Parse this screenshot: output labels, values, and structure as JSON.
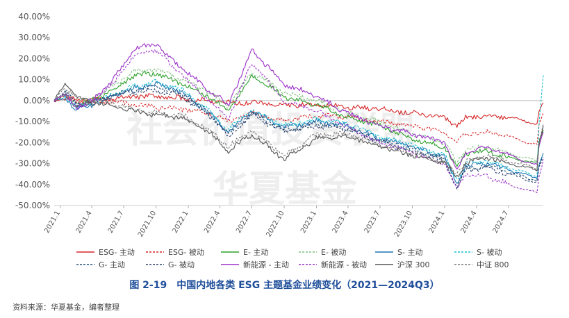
{
  "caption": "图 2-19　中国内地各类 ESG 主题基金业绩变化（2021—2024Q3）",
  "source": "资料来源：华夏基金，编者整理",
  "watermarks": [
    "社会价值投资联盟",
    "华夏基金"
  ],
  "chart_data": {
    "type": "line",
    "ylim": [
      -0.5,
      0.4
    ],
    "yticks": [
      -0.5,
      -0.4,
      -0.3,
      -0.2,
      -0.1,
      0.0,
      0.1,
      0.2,
      0.3,
      0.4
    ],
    "ytick_labels": [
      "-50.00%",
      "-40.00%",
      "-30.00%",
      "-20.00%",
      "-10.00%",
      "0.00%",
      "10.00%",
      "20.00%",
      "30.00%",
      "40.00%"
    ],
    "x_range": [
      "2020-12-15",
      "2024-10-08"
    ],
    "x_ticks": [
      {
        "label": "2021.1",
        "date": "2021-01-01"
      },
      {
        "label": "2021.4",
        "date": "2021-04-01"
      },
      {
        "label": "2021.7",
        "date": "2021-07-01"
      },
      {
        "label": "2021.10",
        "date": "2021-10-01"
      },
      {
        "label": "2022.1",
        "date": "2022-01-01"
      },
      {
        "label": "2022.4",
        "date": "2022-04-01"
      },
      {
        "label": "2022.7",
        "date": "2022-07-01"
      },
      {
        "label": "2022.10",
        "date": "2022-10-01"
      },
      {
        "label": "2023.1",
        "date": "2023-01-01"
      },
      {
        "label": "2023.4",
        "date": "2023-04-01"
      },
      {
        "label": "2023.7",
        "date": "2023-07-01"
      },
      {
        "label": "2023.10",
        "date": "2023-10-01"
      },
      {
        "label": "2024.1",
        "date": "2024-01-01"
      },
      {
        "label": "2024.4",
        "date": "2024-04-01"
      },
      {
        "label": "2024.7",
        "date": "2024-07-01"
      }
    ],
    "legend_placement": "bottom",
    "series": [
      {
        "name": "ESG- 主动",
        "color": "#d62728",
        "dash": false,
        "x": [
          "2020-12-15",
          "2021-01-15",
          "2021-02-15",
          "2021-04-01",
          "2021-06-01",
          "2021-08-01",
          "2021-10-01",
          "2021-12-15",
          "2022-03-01",
          "2022-04-25",
          "2022-07-01",
          "2022-10-01",
          "2023-01-01",
          "2023-04-01",
          "2023-07-01",
          "2023-10-01",
          "2024-01-01",
          "2024-02-05",
          "2024-03-01",
          "2024-05-01",
          "2024-07-01",
          "2024-09-20",
          "2024-09-26",
          "2024-10-08"
        ],
        "y": [
          0.0,
          0.01,
          0.005,
          0.0,
          0.01,
          0.02,
          0.02,
          0.01,
          0.0,
          -0.01,
          -0.01,
          -0.02,
          -0.02,
          -0.03,
          -0.04,
          -0.06,
          -0.08,
          -0.12,
          -0.08,
          -0.07,
          -0.08,
          -0.11,
          -0.05,
          -0.01
        ]
      },
      {
        "name": "ESG- 被动",
        "color": "#d62728",
        "dash": true,
        "x": [
          "2020-12-15",
          "2021-01-15",
          "2021-02-15",
          "2021-04-01",
          "2021-06-01",
          "2021-08-01",
          "2021-10-01",
          "2021-12-15",
          "2022-03-01",
          "2022-04-25",
          "2022-07-01",
          "2022-10-01",
          "2023-01-01",
          "2023-04-01",
          "2023-07-01",
          "2023-10-01",
          "2024-01-01",
          "2024-02-05",
          "2024-03-01",
          "2024-05-01",
          "2024-07-01",
          "2024-09-20",
          "2024-09-26",
          "2024-10-08"
        ],
        "y": [
          0.0,
          0.02,
          0.0,
          -0.01,
          0.0,
          -0.02,
          -0.03,
          -0.04,
          -0.06,
          -0.1,
          -0.06,
          -0.1,
          -0.07,
          -0.08,
          -0.1,
          -0.12,
          -0.15,
          -0.2,
          -0.16,
          -0.15,
          -0.17,
          -0.21,
          -0.12,
          -0.06
        ]
      },
      {
        "name": "E- 主动",
        "color": "#2ca02c",
        "dash": false,
        "x": [
          "2020-12-15",
          "2021-01-15",
          "2021-02-15",
          "2021-04-01",
          "2021-06-01",
          "2021-08-01",
          "2021-10-01",
          "2021-12-15",
          "2022-03-01",
          "2022-04-25",
          "2022-07-01",
          "2022-10-01",
          "2023-01-01",
          "2023-04-01",
          "2023-07-01",
          "2023-10-01",
          "2024-01-01",
          "2024-02-05",
          "2024-03-01",
          "2024-05-01",
          "2024-07-01",
          "2024-09-20",
          "2024-09-26",
          "2024-10-08"
        ],
        "y": [
          0.0,
          0.02,
          -0.02,
          0.0,
          0.05,
          0.12,
          0.13,
          0.08,
          0.02,
          -0.05,
          0.12,
          0.02,
          -0.02,
          -0.08,
          -0.12,
          -0.18,
          -0.22,
          -0.32,
          -0.25,
          -0.24,
          -0.27,
          -0.3,
          -0.2,
          -0.14
        ]
      },
      {
        "name": "E- 被动",
        "color": "#7fbf7f",
        "dash": true,
        "x": [
          "2020-12-15",
          "2021-01-15",
          "2021-02-15",
          "2021-04-01",
          "2021-06-01",
          "2021-08-01",
          "2021-10-01",
          "2021-12-15",
          "2022-03-01",
          "2022-04-25",
          "2022-07-01",
          "2022-10-01",
          "2023-01-01",
          "2023-04-01",
          "2023-07-01",
          "2023-10-01",
          "2024-01-01",
          "2024-02-05",
          "2024-03-01",
          "2024-05-01",
          "2024-07-01",
          "2024-09-20",
          "2024-09-26",
          "2024-10-08"
        ],
        "y": [
          0.0,
          0.03,
          -0.01,
          0.01,
          0.07,
          0.14,
          0.15,
          0.1,
          0.04,
          -0.03,
          0.14,
          0.04,
          0.0,
          -0.06,
          -0.1,
          -0.16,
          -0.2,
          -0.3,
          -0.23,
          -0.22,
          -0.25,
          -0.29,
          -0.19,
          -0.12
        ]
      },
      {
        "name": "S- 主动",
        "color": "#1f77b4",
        "dash": false,
        "x": [
          "2020-12-15",
          "2021-01-15",
          "2021-02-15",
          "2021-04-01",
          "2021-06-01",
          "2021-08-01",
          "2021-10-01",
          "2021-12-15",
          "2022-03-01",
          "2022-04-25",
          "2022-07-01",
          "2022-10-01",
          "2023-01-01",
          "2023-04-01",
          "2023-07-01",
          "2023-10-01",
          "2024-01-01",
          "2024-02-05",
          "2024-03-01",
          "2024-05-01",
          "2024-07-01",
          "2024-09-20",
          "2024-09-26",
          "2024-10-08"
        ],
        "y": [
          0.0,
          0.01,
          -0.04,
          -0.02,
          0.02,
          0.06,
          0.08,
          0.04,
          -0.06,
          -0.15,
          -0.05,
          -0.13,
          -0.1,
          -0.12,
          -0.18,
          -0.22,
          -0.27,
          -0.4,
          -0.31,
          -0.3,
          -0.33,
          -0.37,
          -0.3,
          -0.25
        ]
      },
      {
        "name": "S- 被动",
        "color": "#17becf",
        "dash": true,
        "x": [
          "2020-12-15",
          "2021-01-15",
          "2021-02-15",
          "2021-04-01",
          "2021-06-01",
          "2021-08-01",
          "2021-10-01",
          "2021-12-15",
          "2022-03-01",
          "2022-04-25",
          "2022-07-01",
          "2022-10-01",
          "2023-01-01",
          "2023-04-01",
          "2023-07-01",
          "2023-10-01",
          "2024-01-01",
          "2024-02-05",
          "2024-03-01",
          "2024-05-01",
          "2024-07-01",
          "2024-09-20",
          "2024-09-26",
          "2024-10-08"
        ],
        "y": [
          0.0,
          0.02,
          -0.03,
          -0.01,
          0.03,
          0.07,
          0.09,
          0.05,
          -0.05,
          -0.14,
          -0.04,
          -0.12,
          -0.09,
          -0.11,
          -0.17,
          -0.21,
          -0.26,
          -0.38,
          -0.3,
          -0.29,
          -0.32,
          -0.36,
          -0.1,
          0.12
        ]
      },
      {
        "name": "G- 主动",
        "color": "#1f4e79",
        "dash": true,
        "x": [
          "2020-12-15",
          "2021-01-15",
          "2021-02-15",
          "2021-04-01",
          "2021-06-01",
          "2021-08-01",
          "2021-10-01",
          "2021-12-15",
          "2022-03-01",
          "2022-04-25",
          "2022-07-01",
          "2022-10-01",
          "2023-01-01",
          "2023-04-01",
          "2023-07-01",
          "2023-10-01",
          "2024-01-01",
          "2024-02-05",
          "2024-03-01",
          "2024-05-01",
          "2024-07-01",
          "2024-09-20",
          "2024-09-26",
          "2024-10-08"
        ],
        "y": [
          0.0,
          0.05,
          -0.02,
          -0.01,
          0.03,
          0.05,
          0.07,
          0.03,
          -0.06,
          -0.16,
          -0.06,
          -0.14,
          -0.11,
          -0.13,
          -0.19,
          -0.23,
          -0.28,
          -0.41,
          -0.32,
          -0.31,
          -0.34,
          -0.38,
          -0.31,
          -0.27
        ]
      },
      {
        "name": "G- 被动",
        "color": "#2b3f6b",
        "dash": true,
        "x": [
          "2020-12-15",
          "2021-01-15",
          "2021-02-15",
          "2021-04-01",
          "2021-06-01",
          "2021-08-01",
          "2021-10-01",
          "2021-12-15",
          "2022-03-01",
          "2022-04-25",
          "2022-07-01",
          "2022-10-01",
          "2023-01-01",
          "2023-04-01",
          "2023-07-01",
          "2023-10-01",
          "2024-01-01",
          "2024-02-05",
          "2024-03-01",
          "2024-05-01",
          "2024-07-01",
          "2024-09-20",
          "2024-09-26",
          "2024-10-08"
        ],
        "y": [
          0.0,
          0.04,
          -0.02,
          -0.01,
          0.02,
          0.04,
          0.05,
          0.02,
          -0.07,
          -0.17,
          -0.07,
          -0.15,
          -0.12,
          -0.14,
          -0.2,
          -0.24,
          -0.29,
          -0.42,
          -0.33,
          -0.32,
          -0.35,
          -0.39,
          -0.32,
          -0.28
        ]
      },
      {
        "name": "新能源 - 主动",
        "color": "#9b30c8",
        "dash": false,
        "x": [
          "2020-12-15",
          "2021-01-15",
          "2021-02-15",
          "2021-04-01",
          "2021-06-01",
          "2021-08-01",
          "2021-10-01",
          "2021-12-15",
          "2022-03-01",
          "2022-04-25",
          "2022-07-01",
          "2022-10-01",
          "2023-01-01",
          "2023-04-01",
          "2023-07-01",
          "2023-10-01",
          "2024-01-01",
          "2024-02-05",
          "2024-03-01",
          "2024-05-01",
          "2024-07-01",
          "2024-09-20",
          "2024-09-26",
          "2024-10-08"
        ],
        "y": [
          0.0,
          0.03,
          -0.03,
          0.0,
          0.1,
          0.25,
          0.27,
          0.15,
          0.05,
          -0.02,
          0.24,
          0.08,
          0.02,
          -0.06,
          -0.12,
          -0.16,
          -0.2,
          -0.33,
          -0.25,
          -0.22,
          -0.26,
          -0.31,
          -0.22,
          -0.15
        ]
      },
      {
        "name": "新能源 - 被动",
        "color": "#9b30c8",
        "dash": true,
        "x": [
          "2020-12-15",
          "2021-01-15",
          "2021-02-15",
          "2021-04-01",
          "2021-06-01",
          "2021-08-01",
          "2021-10-01",
          "2021-12-15",
          "2022-03-01",
          "2022-04-25",
          "2022-07-01",
          "2022-10-01",
          "2023-01-01",
          "2023-04-01",
          "2023-07-01",
          "2023-10-01",
          "2024-01-01",
          "2024-02-05",
          "2024-03-01",
          "2024-05-01",
          "2024-07-01",
          "2024-09-20",
          "2024-09-26",
          "2024-10-08"
        ],
        "y": [
          0.0,
          0.03,
          -0.04,
          -0.01,
          0.08,
          0.22,
          0.24,
          0.12,
          0.0,
          -0.08,
          0.18,
          0.0,
          -0.05,
          -0.13,
          -0.2,
          -0.25,
          -0.3,
          -0.42,
          -0.35,
          -0.36,
          -0.4,
          -0.44,
          -0.36,
          -0.28
        ]
      },
      {
        "name": "沪深 300",
        "color": "#555555",
        "dash": false,
        "x": [
          "2020-12-15",
          "2021-01-15",
          "2021-02-15",
          "2021-04-01",
          "2021-06-01",
          "2021-08-01",
          "2021-10-01",
          "2021-12-15",
          "2022-03-01",
          "2022-04-25",
          "2022-07-01",
          "2022-10-01",
          "2023-01-01",
          "2023-04-01",
          "2023-07-01",
          "2023-10-01",
          "2024-01-01",
          "2024-02-05",
          "2024-03-01",
          "2024-05-01",
          "2024-07-01",
          "2024-09-20",
          "2024-09-26",
          "2024-10-08"
        ],
        "y": [
          0.0,
          0.08,
          0.02,
          -0.01,
          -0.02,
          -0.05,
          -0.07,
          -0.08,
          -0.15,
          -0.24,
          -0.16,
          -0.28,
          -0.18,
          -0.17,
          -0.22,
          -0.26,
          -0.3,
          -0.36,
          -0.3,
          -0.27,
          -0.3,
          -0.33,
          -0.2,
          -0.12
        ]
      },
      {
        "name": "中证 800",
        "color": "#777777",
        "dash": true,
        "x": [
          "2020-12-15",
          "2021-01-15",
          "2021-02-15",
          "2021-04-01",
          "2021-06-01",
          "2021-08-01",
          "2021-10-01",
          "2021-12-15",
          "2022-03-01",
          "2022-04-25",
          "2022-07-01",
          "2022-10-01",
          "2023-01-01",
          "2023-04-01",
          "2023-07-01",
          "2023-10-01",
          "2024-01-01",
          "2024-02-05",
          "2024-03-01",
          "2024-05-01",
          "2024-07-01",
          "2024-09-20",
          "2024-09-26",
          "2024-10-08"
        ],
        "y": [
          0.0,
          0.07,
          0.01,
          -0.01,
          -0.01,
          -0.04,
          -0.06,
          -0.07,
          -0.14,
          -0.22,
          -0.14,
          -0.26,
          -0.16,
          -0.16,
          -0.21,
          -0.25,
          -0.29,
          -0.35,
          -0.29,
          -0.26,
          -0.29,
          -0.32,
          -0.19,
          -0.11
        ]
      }
    ]
  }
}
